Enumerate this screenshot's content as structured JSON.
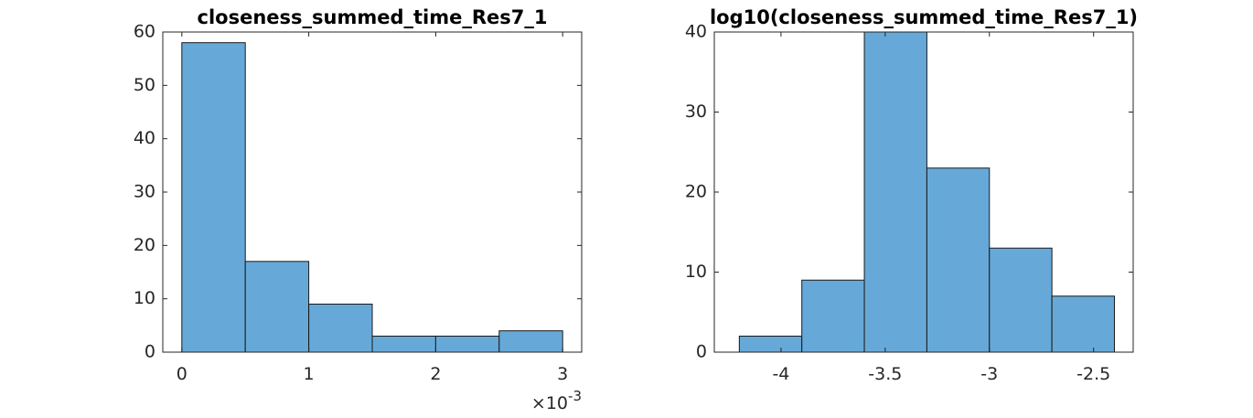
{
  "chart_data": [
    {
      "type": "bar",
      "title": "closeness_summed_time_Res7_1",
      "xlabel": "",
      "ylabel": "",
      "bin_edges": [
        0,
        0.5,
        1.0,
        1.5,
        2.0,
        2.5,
        3.0
      ],
      "values": [
        58,
        17,
        9,
        3,
        3,
        4
      ],
      "xlim": [
        -0.15,
        3.15
      ],
      "ylim": [
        0,
        60
      ],
      "xticks": [
        0,
        1,
        2,
        3
      ],
      "xtick_labels": [
        "0",
        "1",
        "2",
        "3"
      ],
      "yticks": [
        0,
        10,
        20,
        30,
        40,
        50,
        60
      ],
      "ytick_labels": [
        "0",
        "10",
        "20",
        "30",
        "40",
        "50",
        "60"
      ],
      "x_exponent_base": "×10",
      "x_exponent_power": "-3",
      "bar_color": "#66a9d8"
    },
    {
      "type": "bar",
      "title": "log10(closeness_summed_time_Res7_1)",
      "xlabel": "",
      "ylabel": "",
      "bin_edges": [
        -4.2,
        -3.9,
        -3.6,
        -3.3,
        -3.0,
        -2.7,
        -2.4
      ],
      "values": [
        2,
        9,
        40,
        23,
        13,
        7
      ],
      "xlim": [
        -4.32,
        -2.31
      ],
      "ylim": [
        0,
        40
      ],
      "xticks": [
        -4,
        -3.5,
        -3,
        -2.5
      ],
      "xtick_labels": [
        "-4",
        "-3.5",
        "-3",
        "-2.5"
      ],
      "yticks": [
        0,
        10,
        20,
        30,
        40
      ],
      "ytick_labels": [
        "0",
        "10",
        "20",
        "30",
        "40"
      ],
      "bar_color": "#66a9d8"
    }
  ]
}
